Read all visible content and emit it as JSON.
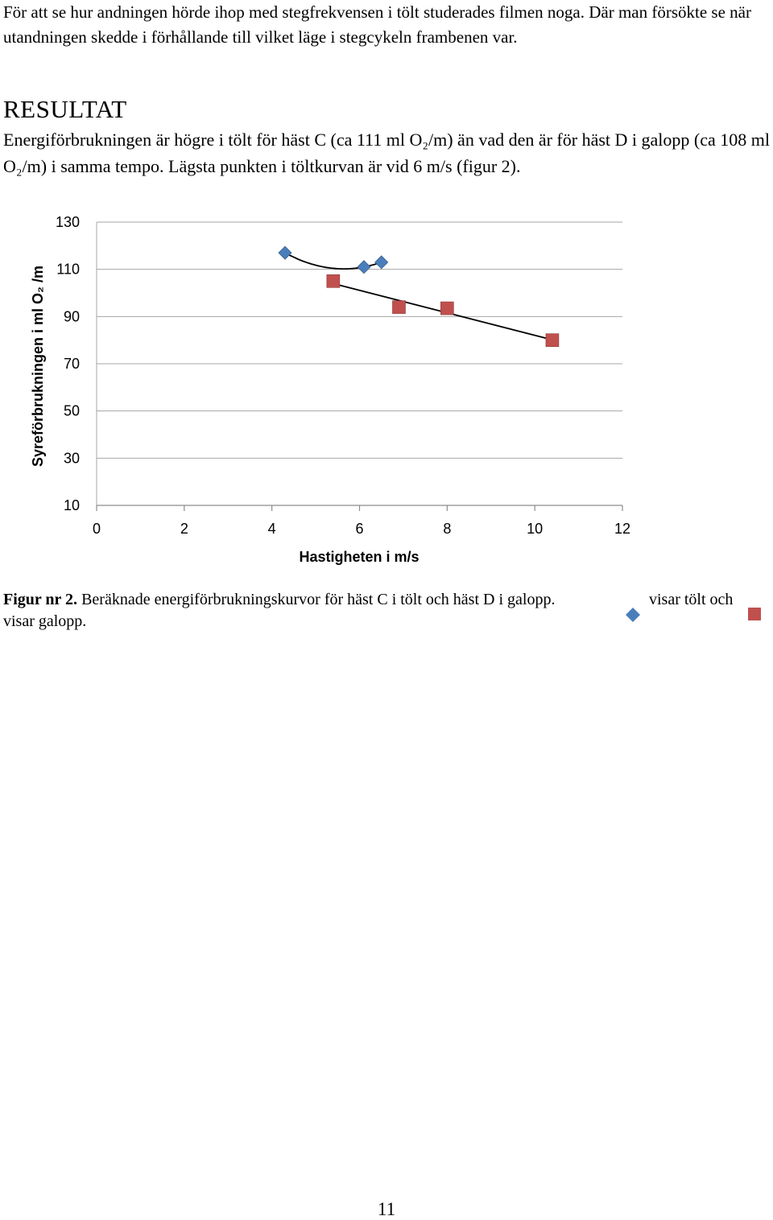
{
  "intro": {
    "text": "För att se hur andningen hörde ihop med stegfrekvensen i tölt studerades filmen noga. Där man försökte se när utandningen skedde i förhållande till vilket läge i stegcykeln frambenen var."
  },
  "result": {
    "heading": "RESULTAT",
    "text": "Energiförbrukningen är högre i tölt för häst C (ca 111 ml O₂/m) än vad den är för häst D i galopp (ca 108 ml O₂/m) i samma tempo. Lägsta punkten i töltkurvan är vid 6 m/s (figur 2)."
  },
  "chart_data": {
    "type": "scatter",
    "xlabel": "Hastigheten i m/s",
    "ylabel": "Syreförbrukningen i ml O₂ /m",
    "xlim": [
      0,
      12
    ],
    "ylim": [
      10,
      130
    ],
    "x_ticks": [
      "0",
      "2",
      "4",
      "6",
      "8",
      "10",
      "12"
    ],
    "y_ticks": [
      "130",
      "110",
      "90",
      "70",
      "50",
      "30",
      "10"
    ],
    "grid": true,
    "series": [
      {
        "marker": "diamond",
        "color": "#4a7ebb",
        "points": [
          [
            4.3,
            117
          ],
          [
            6.1,
            111
          ],
          [
            6.5,
            113
          ]
        ],
        "trendline": "polynomial"
      },
      {
        "marker": "square",
        "color": "#c0504d",
        "points": [
          [
            5.4,
            105
          ],
          [
            6.9,
            94
          ],
          [
            8.0,
            93.5
          ],
          [
            10.4,
            80
          ]
        ],
        "trendline": "linear"
      }
    ]
  },
  "caption": {
    "label": "Figur nr 2.",
    "text": " Beräknade energiförbrukningskurvor för häst C i tölt och häst D i galopp.",
    "tolt": "visar tölt och",
    "galopp": "visar galopp."
  },
  "legend_colors": {
    "diamond": "#4a7ebb",
    "square": "#c0504d"
  },
  "page_number": "11"
}
